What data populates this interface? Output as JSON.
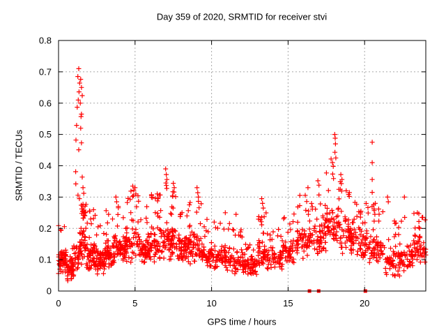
{
  "chart_data": {
    "type": "scatter",
    "title": "Day 359 of 2020, SRMTID for receiver stvi",
    "xlabel": "GPS time / hours",
    "ylabel": "SRMTID / TECUs",
    "xlim": [
      0,
      24
    ],
    "ylim": [
      0,
      0.8
    ],
    "xticks": [
      0,
      5,
      10,
      15,
      20
    ],
    "yticks": [
      0,
      0.1,
      0.2,
      0.3,
      0.4,
      0.5,
      0.6,
      0.7,
      0.8
    ],
    "grid": true,
    "legend": false,
    "marker": "plus",
    "marker_color": "#ff0000",
    "grid_color": "#a8a8a8",
    "background": "#ffffff",
    "synthesis_seed": 7,
    "band_segments": [
      [
        0.0,
        0.5,
        55,
        0.05,
        0.14,
        0.21,
        0.1
      ],
      [
        0.5,
        1.0,
        50,
        0.03,
        0.12,
        0.17,
        0.08
      ],
      [
        1.0,
        1.45,
        30,
        0.07,
        0.17,
        0.22,
        0.1
      ],
      [
        1.45,
        1.8,
        40,
        0.08,
        0.22,
        0.28,
        0.25
      ],
      [
        1.8,
        2.4,
        55,
        0.06,
        0.16,
        0.27,
        0.12
      ],
      [
        2.4,
        3.0,
        55,
        0.05,
        0.14,
        0.21,
        0.1
      ],
      [
        3.0,
        3.6,
        55,
        0.07,
        0.17,
        0.26,
        0.12
      ],
      [
        3.6,
        4.3,
        60,
        0.08,
        0.19,
        0.3,
        0.12
      ],
      [
        4.3,
        5.3,
        70,
        0.09,
        0.21,
        0.32,
        0.14
      ],
      [
        5.3,
        6.0,
        60,
        0.08,
        0.19,
        0.27,
        0.12
      ],
      [
        6.0,
        6.9,
        65,
        0.09,
        0.21,
        0.31,
        0.13
      ],
      [
        6.9,
        7.7,
        65,
        0.1,
        0.23,
        0.35,
        0.13
      ],
      [
        7.7,
        8.5,
        60,
        0.08,
        0.19,
        0.26,
        0.12
      ],
      [
        8.5,
        9.4,
        62,
        0.08,
        0.2,
        0.3,
        0.13
      ],
      [
        9.4,
        10.3,
        58,
        0.06,
        0.16,
        0.23,
        0.1
      ],
      [
        10.3,
        11.2,
        60,
        0.06,
        0.16,
        0.26,
        0.11
      ],
      [
        11.2,
        12.2,
        60,
        0.05,
        0.14,
        0.21,
        0.1
      ],
      [
        12.2,
        13.0,
        55,
        0.04,
        0.12,
        0.17,
        0.08
      ],
      [
        13.0,
        13.6,
        45,
        0.07,
        0.17,
        0.26,
        0.14
      ],
      [
        13.6,
        14.6,
        58,
        0.06,
        0.15,
        0.21,
        0.1
      ],
      [
        14.6,
        15.6,
        58,
        0.08,
        0.17,
        0.25,
        0.11
      ],
      [
        15.6,
        16.5,
        60,
        0.1,
        0.23,
        0.31,
        0.14
      ],
      [
        16.5,
        17.5,
        62,
        0.1,
        0.25,
        0.34,
        0.14
      ],
      [
        17.5,
        18.5,
        65,
        0.12,
        0.29,
        0.43,
        0.15
      ],
      [
        18.5,
        19.5,
        62,
        0.1,
        0.25,
        0.32,
        0.13
      ],
      [
        19.5,
        20.3,
        52,
        0.09,
        0.21,
        0.28,
        0.12
      ],
      [
        20.3,
        21.3,
        58,
        0.08,
        0.19,
        0.28,
        0.12
      ],
      [
        21.3,
        22.3,
        58,
        0.04,
        0.15,
        0.23,
        0.1
      ],
      [
        22.3,
        23.2,
        52,
        0.06,
        0.16,
        0.27,
        0.1
      ],
      [
        23.2,
        24.0,
        50,
        0.08,
        0.19,
        0.25,
        0.12
      ]
    ],
    "outlier_points": [
      [
        1.32,
        0.71
      ],
      [
        1.26,
        0.685
      ],
      [
        1.45,
        0.676
      ],
      [
        1.38,
        0.664
      ],
      [
        1.5,
        0.65
      ],
      [
        1.34,
        0.636
      ],
      [
        1.55,
        0.624
      ],
      [
        1.29,
        0.61
      ],
      [
        1.42,
        0.6
      ],
      [
        1.22,
        0.587
      ],
      [
        1.5,
        0.565
      ],
      [
        1.47,
        0.557
      ],
      [
        1.18,
        0.529
      ],
      [
        1.45,
        0.52
      ],
      [
        1.14,
        0.482
      ],
      [
        1.5,
        0.473
      ],
      [
        1.32,
        0.451
      ],
      [
        1.12,
        0.381
      ],
      [
        1.55,
        0.364
      ],
      [
        1.13,
        0.342
      ],
      [
        1.27,
        0.306
      ],
      [
        1.6,
        0.33
      ],
      [
        1.65,
        0.312
      ],
      [
        1.36,
        0.295
      ],
      [
        1.52,
        0.262
      ],
      [
        1.57,
        0.254
      ],
      [
        1.62,
        0.248
      ],
      [
        1.66,
        0.259
      ],
      [
        1.69,
        0.242
      ],
      [
        1.59,
        0.27
      ],
      [
        1.63,
        0.233
      ],
      [
        2.05,
        0.255
      ],
      [
        2.1,
        0.23
      ],
      [
        3.75,
        0.3
      ],
      [
        3.8,
        0.285
      ],
      [
        4.85,
        0.335
      ],
      [
        4.92,
        0.322
      ],
      [
        5.0,
        0.33
      ],
      [
        5.05,
        0.31
      ],
      [
        6.45,
        0.31
      ],
      [
        6.5,
        0.295
      ],
      [
        7.0,
        0.39
      ],
      [
        7.04,
        0.372
      ],
      [
        7.08,
        0.356
      ],
      [
        7.02,
        0.345
      ],
      [
        7.5,
        0.344
      ],
      [
        7.56,
        0.33
      ],
      [
        9.05,
        0.33
      ],
      [
        9.1,
        0.314
      ],
      [
        9.14,
        0.3
      ],
      [
        10.9,
        0.25
      ],
      [
        11.6,
        0.245
      ],
      [
        13.28,
        0.295
      ],
      [
        13.33,
        0.28
      ],
      [
        13.38,
        0.265
      ],
      [
        16.3,
        0.33
      ],
      [
        16.95,
        0.352
      ],
      [
        17.02,
        0.338
      ],
      [
        17.9,
        0.41
      ],
      [
        17.95,
        0.398
      ],
      [
        18.05,
        0.5
      ],
      [
        18.08,
        0.488
      ],
      [
        18.1,
        0.47
      ],
      [
        18.06,
        0.443
      ],
      [
        18.12,
        0.425
      ],
      [
        18.45,
        0.372
      ],
      [
        18.52,
        0.356
      ],
      [
        18.8,
        0.32
      ],
      [
        19.0,
        0.302
      ],
      [
        20.5,
        0.475
      ],
      [
        20.5,
        0.41
      ],
      [
        20.5,
        0.356
      ],
      [
        20.5,
        0.315
      ],
      [
        20.7,
        0.28
      ],
      [
        21.5,
        0.3
      ],
      [
        21.55,
        0.285
      ],
      [
        22.6,
        0.3
      ],
      [
        22.62,
        0.235
      ],
      [
        23.45,
        0.25
      ],
      [
        23.55,
        0.222
      ],
      [
        23.6,
        0.2
      ]
    ],
    "zero_marker_squares_x": [
      16.4,
      17.0,
      20.05
    ]
  }
}
